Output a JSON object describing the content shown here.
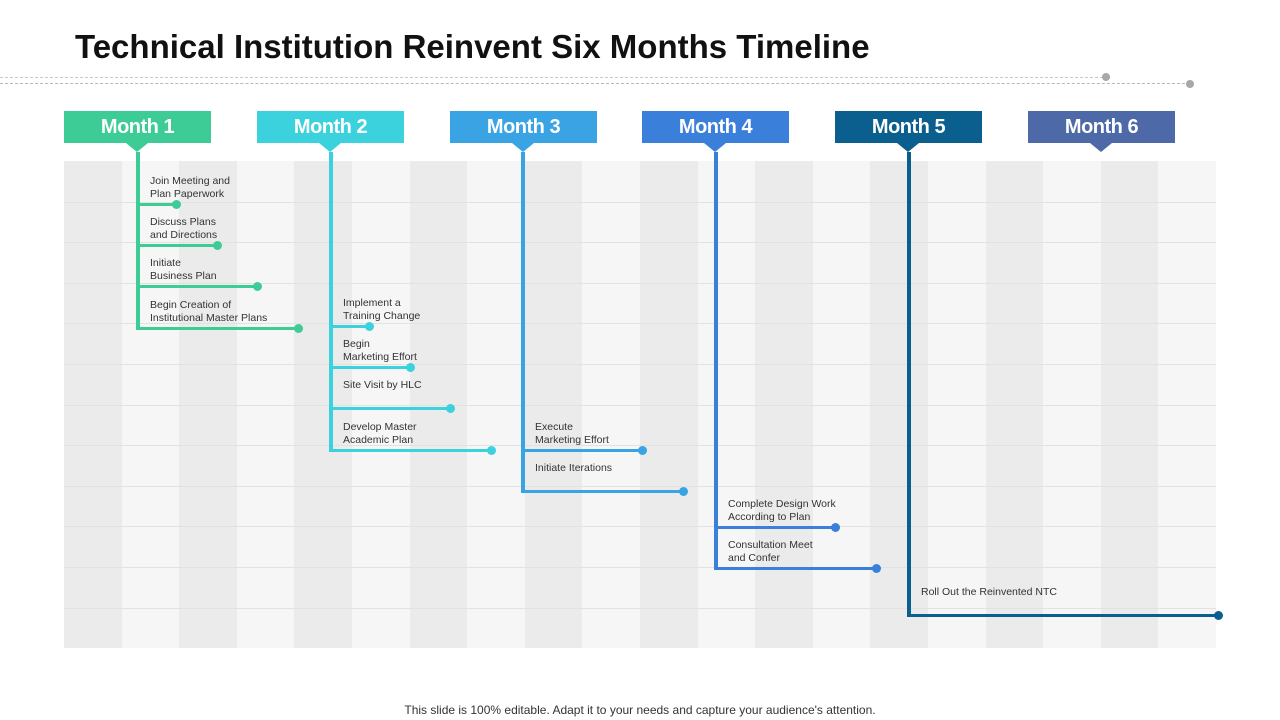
{
  "title": "Technical Institution Reinvent Six Months Timeline",
  "footer": "This slide is 100% editable. Adapt it to your needs and capture your audience's attention.",
  "months": [
    {
      "label": "Month 1",
      "color": "#3dcc96",
      "tasks": [
        {
          "line1": "Join Meeting and",
          "line2": "Plan Paperwork"
        },
        {
          "line1": "Discuss Plans",
          "line2": "and Directions"
        },
        {
          "line1": "Initiate",
          "line2": "Business Plan"
        },
        {
          "line1": "Begin Creation of",
          "line2": "Institutional Master Plans"
        }
      ]
    },
    {
      "label": "Month 2",
      "color": "#3bd2de",
      "tasks": [
        {
          "line1": "Implement  a",
          "line2": "Training Change"
        },
        {
          "line1": "Begin",
          "line2": "Marketing Effort"
        },
        {
          "line1": "Site Visit by HLC",
          "line2": ""
        },
        {
          "line1": "Develop Master",
          "line2": "Academic Plan"
        }
      ]
    },
    {
      "label": "Month 3",
      "color": "#3aa3e3",
      "tasks": [
        {
          "line1": "Execute",
          "line2": "Marketing Effort"
        },
        {
          "line1": "Initiate  Iterations",
          "line2": ""
        }
      ]
    },
    {
      "label": "Month 4",
      "color": "#3a7fd9",
      "tasks": [
        {
          "line1": "Complete  Design Work",
          "line2": "According to Plan"
        },
        {
          "line1": "Consultation Meet",
          "line2": "and Confer"
        }
      ]
    },
    {
      "label": "Month 5",
      "color": "#0a5f8f",
      "tasks": [
        {
          "line1": "Roll Out the Reinvented NTC",
          "line2": ""
        }
      ]
    },
    {
      "label": "Month 6",
      "color": "#4d69a8",
      "tasks": []
    }
  ]
}
